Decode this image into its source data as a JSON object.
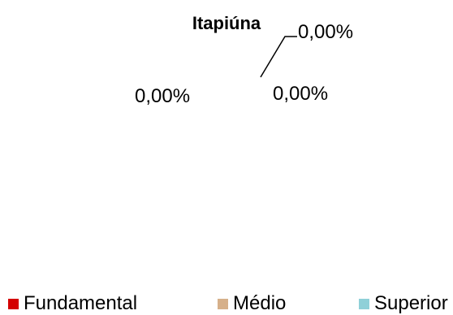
{
  "chart_data": {
    "type": "pie",
    "title": "Itapiúna",
    "categories": [
      "Fundamental",
      "Médio",
      "Superior"
    ],
    "values": [
      0,
      0,
      0
    ],
    "data_labels": [
      "0,00%",
      "0,00%",
      "0,00%"
    ],
    "legend_placement": "bottom",
    "colors": [
      "#d40000",
      "#d6b08a",
      "#8fd0d8"
    ],
    "leader_line": true
  }
}
